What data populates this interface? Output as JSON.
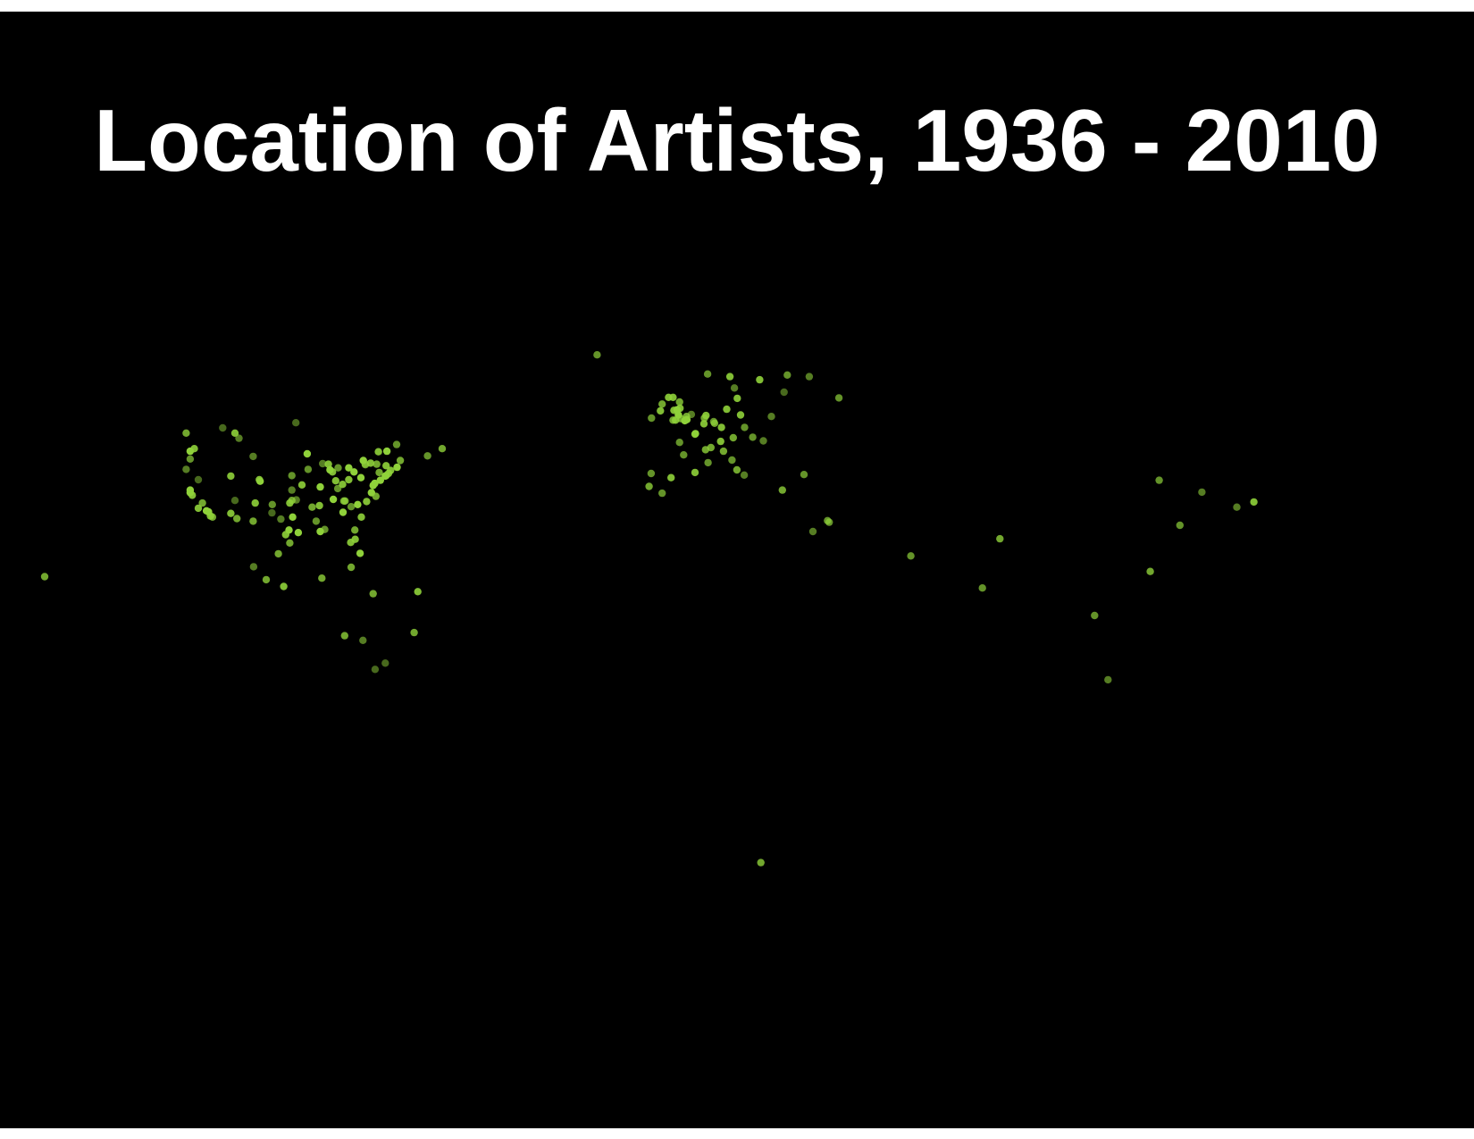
{
  "title": "Location of Artists, 1936 - 2010",
  "colors": {
    "background": "#000000",
    "dot": "#8fd13a",
    "title": "#ffffff"
  },
  "chart_data": {
    "type": "scatter",
    "projection": "equirectangular",
    "xlabel": "",
    "ylabel": "",
    "grid": false,
    "legend": "none",
    "xlim": [
      -180,
      180
    ],
    "ylim": [
      -60,
      80
    ],
    "series": [
      {
        "encoding": "[longitude, latitude, opacity]",
        "points": [
          [
            -123,
            49,
            0.8
          ],
          [
            -114,
            50,
            0.5
          ],
          [
            -111,
            49,
            0.9
          ],
          [
            -110,
            48,
            0.6
          ],
          [
            -96,
            51,
            0.5
          ],
          [
            -121,
            46,
            0.9
          ],
          [
            -122,
            45.5,
            1
          ],
          [
            -122,
            44,
            0.7
          ],
          [
            -123,
            42,
            0.6
          ],
          [
            -120,
            40,
            0.5
          ],
          [
            -122,
            38,
            1
          ],
          [
            -122,
            37.5,
            1
          ],
          [
            -121.5,
            37,
            0.9
          ],
          [
            -120,
            34.5,
            0.9
          ],
          [
            -118,
            34,
            1
          ],
          [
            -117.5,
            33.8,
            1
          ],
          [
            -117,
            33,
            0.9
          ],
          [
            -116.5,
            32.8,
            0.8
          ],
          [
            -119,
            35.5,
            0.8
          ],
          [
            -112,
            40.7,
            0.9
          ],
          [
            -112,
            33.5,
            0.9
          ],
          [
            -110.5,
            32.5,
            0.8
          ],
          [
            -111,
            36,
            0.5
          ],
          [
            -106.5,
            44.5,
            0.6
          ],
          [
            -105,
            40,
            0.9
          ],
          [
            -104.8,
            39.7,
            1
          ],
          [
            -106,
            35.5,
            0.9
          ],
          [
            -106.5,
            32,
            0.8
          ],
          [
            -97,
            40.8,
            0.7
          ],
          [
            -97,
            38,
            0.6
          ],
          [
            -97,
            36,
            0.8
          ],
          [
            -97.5,
            35.5,
            0.9
          ],
          [
            -96.8,
            32.8,
            1
          ],
          [
            -97.7,
            30.3,
            1
          ],
          [
            -95.4,
            29.8,
            1
          ],
          [
            -98.5,
            29.4,
            0.9
          ],
          [
            -97.5,
            27.8,
            0.8
          ],
          [
            -94.5,
            39,
            0.9
          ],
          [
            -93.2,
            45,
            1
          ],
          [
            -93,
            42,
            0.7
          ],
          [
            -90,
            38.6,
            1
          ],
          [
            -90.2,
            35,
            0.9
          ],
          [
            -90,
            30,
            1
          ],
          [
            -91,
            32,
            0.7
          ],
          [
            -88,
            43,
            0.9
          ],
          [
            -87.6,
            41.9,
            1
          ],
          [
            -87,
            41.5,
            0.9
          ],
          [
            -86.8,
            36.2,
            1
          ],
          [
            -86.2,
            39.8,
            0.9
          ],
          [
            -84.4,
            33.7,
            1
          ],
          [
            -84.5,
            39.1,
            0.9
          ],
          [
            -83,
            42.3,
            1
          ],
          [
            -83,
            40,
            0.9
          ],
          [
            -81.7,
            41.5,
            1
          ],
          [
            -80,
            40.4,
            1
          ],
          [
            -80.8,
            35.2,
            1
          ],
          [
            -81.5,
            30.3,
            0.8
          ],
          [
            -80.2,
            25.8,
            1
          ],
          [
            -82.5,
            27.9,
            0.9
          ],
          [
            -81.4,
            28.5,
            0.9
          ],
          [
            -78.6,
            35.8,
            0.9
          ],
          [
            -77.4,
            37.5,
            1
          ],
          [
            -77,
            38.9,
            1
          ],
          [
            -76.6,
            39.3,
            1
          ],
          [
            -75.2,
            39.9,
            1
          ],
          [
            -74,
            40.7,
            1
          ],
          [
            -73.8,
            40.8,
            1
          ],
          [
            -73.2,
            41.2,
            0.9
          ],
          [
            -72.7,
            41.8,
            0.9
          ],
          [
            -71.1,
            42.4,
            1
          ],
          [
            -70.3,
            43.7,
            0.8
          ],
          [
            -73.8,
            42.7,
            0.9
          ],
          [
            -76.1,
            43,
            0.8
          ],
          [
            -77.6,
            43.2,
            0.9
          ],
          [
            -78.9,
            42.9,
            0.8
          ],
          [
            -79.4,
            43.7,
            1
          ],
          [
            -75.7,
            45.4,
            0.9
          ],
          [
            -73.6,
            45.5,
            1
          ],
          [
            -71.2,
            46.8,
            0.7
          ],
          [
            -63.6,
            44.6,
            0.7
          ],
          [
            -60,
            46,
            0.8
          ],
          [
            -85.7,
            38.3,
            0.7
          ],
          [
            -84.2,
            35.9,
            0.8
          ],
          [
            -88.9,
            30.4,
            0.7
          ],
          [
            -92,
            34.7,
            0.8
          ],
          [
            -95.9,
            36.1,
            0.6
          ],
          [
            -101.8,
            35.2,
            0.7
          ],
          [
            -101.9,
            33.6,
            0.5
          ],
          [
            -99.7,
            32.4,
            0.6
          ],
          [
            -89.4,
            43.1,
            0.6
          ],
          [
            -85.6,
            42.3,
            0.7
          ],
          [
            -79,
            43.1,
            0.5
          ],
          [
            -75.5,
            41.4,
            0.8
          ],
          [
            -76.3,
            36.8,
            0.8
          ],
          [
            -79.9,
            32.8,
            0.9
          ],
          [
            -82.4,
            34.8,
            0.7
          ],
          [
            -83.9,
            35.9,
            0.8
          ],
          [
            -99,
            19.4,
            0.9
          ],
          [
            -103.3,
            20.7,
            0.8
          ],
          [
            -100.3,
            25.7,
            0.8
          ],
          [
            -106.4,
            23.2,
            0.6
          ],
          [
            -89.6,
            21,
            0.8
          ],
          [
            -84,
            9.9,
            0.8
          ],
          [
            -79.5,
            9,
            0.6
          ],
          [
            -74,
            4.6,
            0.5
          ],
          [
            -66.9,
            10.5,
            0.8
          ],
          [
            -66,
            18.4,
            0.9
          ],
          [
            -77,
            18,
            0.8
          ],
          [
            -82.4,
            23.1,
            0.8
          ],
          [
            -76.5,
            3.4,
            0.5
          ],
          [
            -157.8,
            21.3,
            0.8
          ],
          [
            -21.9,
            64.1,
            0.7
          ],
          [
            -0.1,
            51.5,
            1
          ],
          [
            -0.3,
            51.4,
            1
          ],
          [
            0.2,
            51.6,
            1
          ],
          [
            -1.9,
            52.5,
            1
          ],
          [
            -2.2,
            53.5,
            1
          ],
          [
            -3,
            53.4,
            0.9
          ],
          [
            -1.5,
            53.8,
            0.9
          ],
          [
            -1.6,
            55,
            0.8
          ],
          [
            -3.2,
            55.9,
            0.9
          ],
          [
            -4.3,
            55.9,
            0.9
          ],
          [
            -2.6,
            51.5,
            0.9
          ],
          [
            -3.2,
            51.5,
            0.8
          ],
          [
            -6.3,
            53.3,
            0.9
          ],
          [
            -8.5,
            51.9,
            0.7
          ],
          [
            -5.9,
            54.6,
            0.8
          ],
          [
            -1.3,
            51.8,
            0.8
          ],
          [
            0.1,
            52.2,
            0.8
          ],
          [
            1.3,
            52.6,
            0.6
          ],
          [
            2.3,
            48.9,
            1
          ],
          [
            2.2,
            48.8,
            0.9
          ],
          [
            4.4,
            50.8,
            0.9
          ],
          [
            4.9,
            52.4,
            0.9
          ],
          [
            4.5,
            51.9,
            0.8
          ],
          [
            6.8,
            51.2,
            0.7
          ],
          [
            7,
            50.9,
            0.8
          ],
          [
            8.7,
            50.1,
            0.9
          ],
          [
            10,
            53.6,
            0.9
          ],
          [
            13.4,
            52.5,
            0.9
          ],
          [
            11.6,
            48.1,
            0.8
          ],
          [
            8.5,
            47.4,
            0.9
          ],
          [
            6.1,
            46.2,
            0.8
          ],
          [
            4.8,
            45.8,
            0.8
          ],
          [
            5.4,
            43.3,
            0.7
          ],
          [
            -0.6,
            44.8,
            0.7
          ],
          [
            -1.6,
            47.2,
            0.7
          ],
          [
            -3.7,
            40.4,
            0.9
          ],
          [
            2.2,
            41.4,
            0.9
          ],
          [
            -9.1,
            38.7,
            0.8
          ],
          [
            -8.6,
            41.2,
            0.7
          ],
          [
            -5.9,
            37.4,
            0.7
          ],
          [
            12.5,
            41.9,
            0.8
          ],
          [
            9.2,
            45.5,
            0.8
          ],
          [
            11.3,
            43.8,
            0.7
          ],
          [
            14.3,
            40.9,
            0.6
          ],
          [
            16.4,
            48.2,
            0.7
          ],
          [
            14.4,
            50.1,
            0.7
          ],
          [
            19,
            47.5,
            0.6
          ],
          [
            21,
            52.2,
            0.6
          ],
          [
            12.6,
            55.7,
            0.9
          ],
          [
            10.8,
            59.9,
            0.9
          ],
          [
            18.1,
            59.3,
            0.9
          ],
          [
            24.9,
            60.2,
            0.7
          ],
          [
            11.9,
            57.7,
            0.6
          ],
          [
            5.3,
            60.4,
            0.7
          ],
          [
            24.1,
            56.9,
            0.5
          ],
          [
            37.6,
            55.8,
            0.7
          ],
          [
            30.3,
            59.9,
            0.6
          ],
          [
            23.7,
            38,
            0.8
          ],
          [
            29,
            41,
            0.7
          ],
          [
            35.2,
            31.8,
            0.7
          ],
          [
            34.8,
            32.1,
            0.7
          ],
          [
            31.2,
            30,
            0.6
          ],
          [
            55.3,
            25.3,
            0.7
          ],
          [
            18.4,
            -33.9,
            0.8
          ],
          [
            72.9,
            19.1,
            0.7
          ],
          [
            77.2,
            28.6,
            0.8
          ],
          [
            121.5,
            31.2,
            0.7
          ],
          [
            116.4,
            39.9,
            0.7
          ],
          [
            103.8,
            1.4,
            0.6
          ],
          [
            100.5,
            13.8,
            0.7
          ],
          [
            114.2,
            22.3,
            0.8
          ],
          [
            139.7,
            35.7,
            0.9
          ],
          [
            135.5,
            34.7,
            0.6
          ],
          [
            126.9,
            37.6,
            0.6
          ]
        ]
      }
    ]
  }
}
